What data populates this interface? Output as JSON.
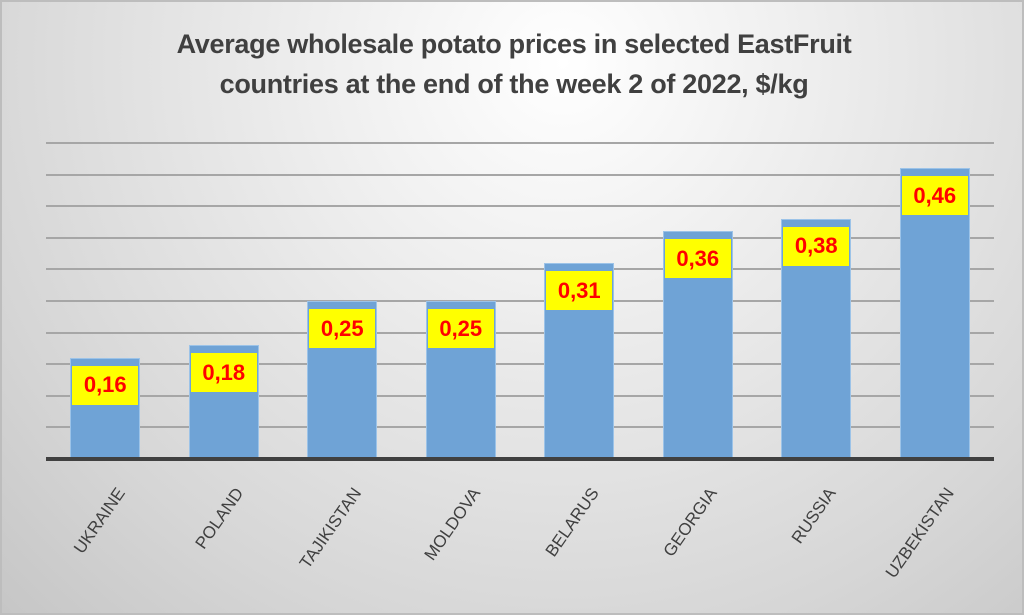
{
  "chart_data": {
    "type": "bar",
    "title": "Average wholesale potato prices in selected EastFruit countries at the end of the week 2 of 2022, $/kg",
    "title_lines": [
      "Average wholesale potato prices in selected EastFruit",
      "countries at the end of the week 2 of 2022, $/kg"
    ],
    "xlabel": "",
    "ylabel": "",
    "categories": [
      "UKRAINE",
      "POLAND",
      "TAJIKISTAN",
      "MOLDOVA",
      "BELARUS",
      "GEORGIA",
      "RUSSIA",
      "UZBEKISTAN"
    ],
    "values": [
      0.16,
      0.18,
      0.25,
      0.25,
      0.31,
      0.36,
      0.38,
      0.46
    ],
    "data_labels": [
      "0,16",
      "0,18",
      "0,25",
      "0,25",
      "0,31",
      "0,36",
      "0,38",
      "0,46"
    ],
    "ylim": [
      0,
      0.5
    ],
    "grid_step": 0.05,
    "grid": true,
    "y_axis_labels_visible": false,
    "legend": null,
    "colors": {
      "bar": "#6fa3d6",
      "label_background": "#ffff00",
      "label_text": "#ff0000",
      "title_text": "#404040"
    }
  }
}
